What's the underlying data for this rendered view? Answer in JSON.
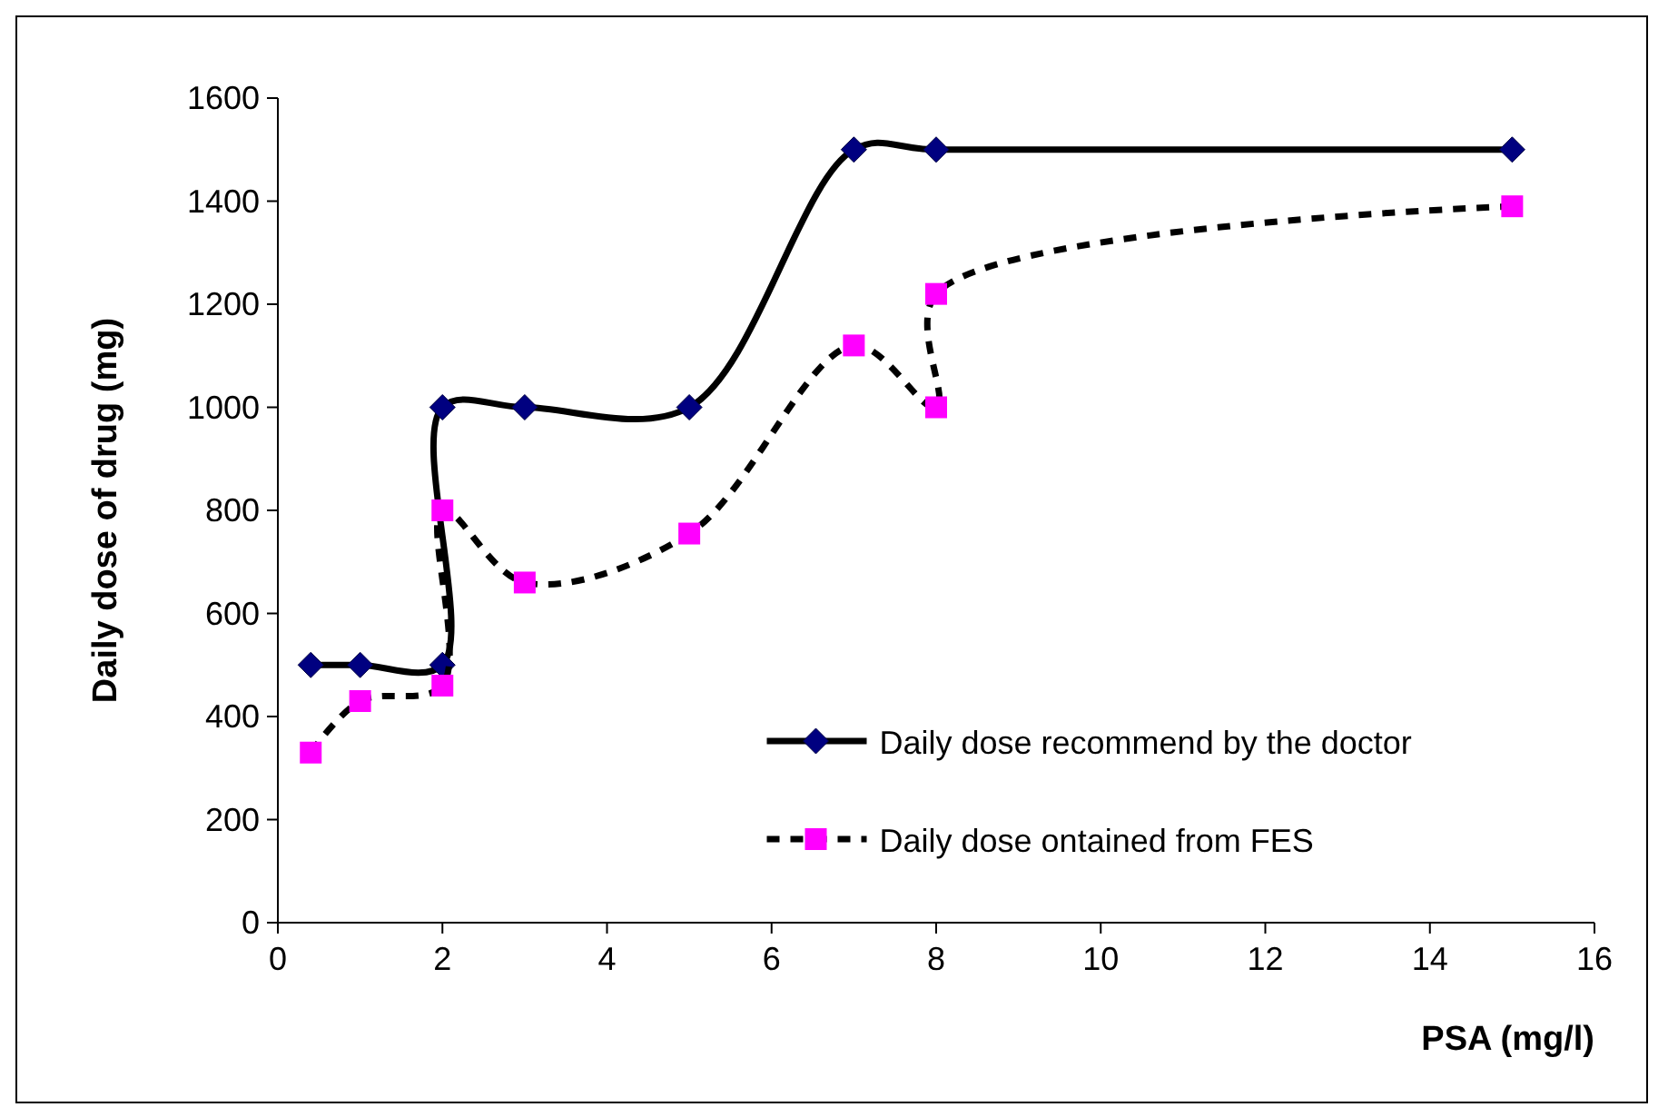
{
  "chart_data": {
    "type": "line",
    "xlabel": "PSA (mg/l)",
    "ylabel": "Daily dose of drug (mg)",
    "xlim": [
      0,
      16
    ],
    "xticks": [
      0,
      2,
      4,
      6,
      8,
      10,
      12,
      14,
      16
    ],
    "ylim": [
      0,
      1600
    ],
    "yticks": [
      0,
      200,
      400,
      600,
      800,
      1000,
      1200,
      1400,
      1600
    ],
    "grid": false,
    "legend": "bottom right",
    "series": [
      {
        "name": "Daily dose recommend by the doctor",
        "color": "#000080",
        "x": [
          0.4,
          1,
          2,
          2,
          3,
          5,
          7,
          8,
          15
        ],
        "values": [
          500,
          500,
          500,
          1000,
          1000,
          1000,
          1500,
          1500,
          1500
        ],
        "marker": "diamond",
        "line_style": "solid"
      },
      {
        "name": "Daily dose ontained from FES",
        "color": "#ff00ff",
        "x": [
          0.4,
          1,
          2,
          2,
          3,
          5,
          7,
          8,
          8,
          15
        ],
        "values": [
          330,
          430,
          460,
          800,
          660,
          755,
          1120,
          1000,
          1220,
          1390
        ],
        "marker": "square",
        "line_style": "dashed"
      }
    ]
  }
}
